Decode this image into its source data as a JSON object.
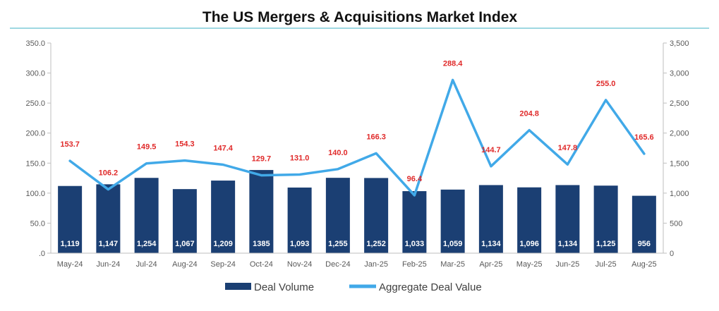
{
  "chart_data": {
    "type": "bar",
    "title": "The US Mergers & Acquisitions Market Index",
    "categories": [
      "May-24",
      "Jun-24",
      "Jul-24",
      "Aug-24",
      "Sep-24",
      "Oct-24",
      "Nov-24",
      "Dec-24",
      "Jan-25",
      "Feb-25",
      "Mar-25",
      "Apr-25",
      "May-25",
      "Jun-25",
      "Jul-25",
      "Aug-25"
    ],
    "left_axis": {
      "ylim": [
        0,
        350
      ],
      "ticks": [
        0,
        50,
        100,
        150,
        200,
        250,
        300,
        350
      ],
      "tick_labels": [
        ".0",
        "50.0",
        "100.0",
        "150.0",
        "200.0",
        "250.0",
        "300.0",
        "350.0"
      ]
    },
    "right_axis": {
      "ylim": [
        0,
        3500
      ],
      "ticks": [
        0,
        500,
        1000,
        1500,
        2000,
        2500,
        3000,
        3500
      ],
      "tick_labels": [
        "0",
        "500",
        "1,000",
        "1,500",
        "2,000",
        "2,500",
        "3,000",
        "3,500"
      ]
    },
    "series": [
      {
        "name": "Deal Volume",
        "type": "bar",
        "axis": "right",
        "color": "#1b3f73",
        "values": [
          1119,
          1147,
          1254,
          1067,
          1209,
          1385,
          1093,
          1255,
          1252,
          1033,
          1059,
          1134,
          1096,
          1134,
          1125,
          956
        ],
        "labels": [
          "1,119",
          "1,147",
          "1,254",
          "1,067",
          "1,209",
          "1385",
          "1,093",
          "1,255",
          "1,252",
          "1,033",
          "1,059",
          "1,134",
          "1,096",
          "1,134",
          "1,125",
          "956"
        ]
      },
      {
        "name": "Aggregate Deal Value",
        "type": "line",
        "axis": "left",
        "color": "#41a9e8",
        "values": [
          153.7,
          106.2,
          149.5,
          154.3,
          147.4,
          129.7,
          131.0,
          140.0,
          166.3,
          96.4,
          288.4,
          144.7,
          204.8,
          147.8,
          255.0,
          165.6
        ],
        "labels": [
          "153.7",
          "106.2",
          "149.5",
          "154.3",
          "147.4",
          "129.7",
          "131.0",
          "140.0",
          "166.3",
          "96.4",
          "288.4",
          "144.7",
          "204.8",
          "147.8",
          "255.0",
          "165.6"
        ],
        "label_color": "#e02a2a"
      }
    ],
    "legend": {
      "position": "bottom",
      "items": [
        "Deal Volume",
        "Aggregate Deal Value"
      ]
    },
    "colors": {
      "title_rule": "#7fcbd8",
      "axis_line": "#bfbfbf",
      "tick_text": "#595959"
    }
  }
}
